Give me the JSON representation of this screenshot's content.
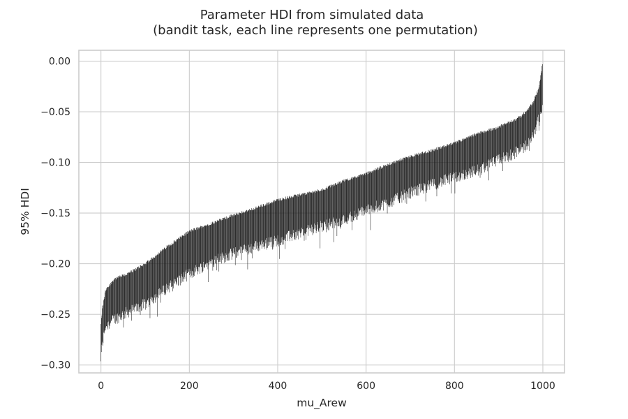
{
  "chart_data": {
    "type": "line",
    "title": "Parameter HDI from simulated data",
    "subtitle": "(bandit task, each line represents one permutation)",
    "xlabel": "mu_Arew",
    "ylabel": "95% HDI",
    "xlim": [
      -50,
      1049
    ],
    "ylim": [
      -0.3078,
      0.0107
    ],
    "xticks": [
      0,
      200,
      400,
      600,
      800,
      1000
    ],
    "yticks": [
      0.0,
      -0.05,
      -0.1,
      -0.15,
      -0.2,
      -0.25,
      -0.3
    ],
    "xtick_labels": [
      "0",
      "200",
      "400",
      "600",
      "800",
      "1000"
    ],
    "ytick_labels": [
      "0.00",
      "−0.05",
      "−0.10",
      "−0.15",
      "−0.20",
      "−0.25",
      "−0.30"
    ],
    "grid": true,
    "legend": "none",
    "n_intervals": 1000,
    "upper_anchors": [
      [
        0,
        -0.26
      ],
      [
        3,
        -0.245
      ],
      [
        10,
        -0.227
      ],
      [
        30,
        -0.215
      ],
      [
        60,
        -0.21
      ],
      [
        100,
        -0.2
      ],
      [
        150,
        -0.183
      ],
      [
        200,
        -0.168
      ],
      [
        250,
        -0.16
      ],
      [
        300,
        -0.152
      ],
      [
        350,
        -0.145
      ],
      [
        400,
        -0.137
      ],
      [
        450,
        -0.132
      ],
      [
        500,
        -0.127
      ],
      [
        550,
        -0.118
      ],
      [
        600,
        -0.111
      ],
      [
        650,
        -0.102
      ],
      [
        700,
        -0.094
      ],
      [
        750,
        -0.088
      ],
      [
        800,
        -0.081
      ],
      [
        850,
        -0.072
      ],
      [
        900,
        -0.065
      ],
      [
        950,
        -0.055
      ],
      [
        975,
        -0.043
      ],
      [
        990,
        -0.028
      ],
      [
        999,
        -0.003
      ]
    ],
    "lower_anchors": [
      [
        0,
        -0.294
      ],
      [
        3,
        -0.28
      ],
      [
        10,
        -0.262
      ],
      [
        30,
        -0.255
      ],
      [
        60,
        -0.248
      ],
      [
        100,
        -0.24
      ],
      [
        150,
        -0.224
      ],
      [
        200,
        -0.21
      ],
      [
        250,
        -0.198
      ],
      [
        300,
        -0.19
      ],
      [
        350,
        -0.183
      ],
      [
        400,
        -0.177
      ],
      [
        450,
        -0.17
      ],
      [
        500,
        -0.163
      ],
      [
        550,
        -0.157
      ],
      [
        600,
        -0.147
      ],
      [
        650,
        -0.14
      ],
      [
        700,
        -0.13
      ],
      [
        750,
        -0.122
      ],
      [
        800,
        -0.115
      ],
      [
        850,
        -0.108
      ],
      [
        900,
        -0.098
      ],
      [
        950,
        -0.088
      ],
      [
        975,
        -0.078
      ],
      [
        990,
        -0.058
      ],
      [
        999,
        -0.045
      ]
    ],
    "colors": {
      "line": "#1a1a1a",
      "grid": "#cccccc",
      "text": "#262626",
      "background": "#ffffff"
    }
  }
}
